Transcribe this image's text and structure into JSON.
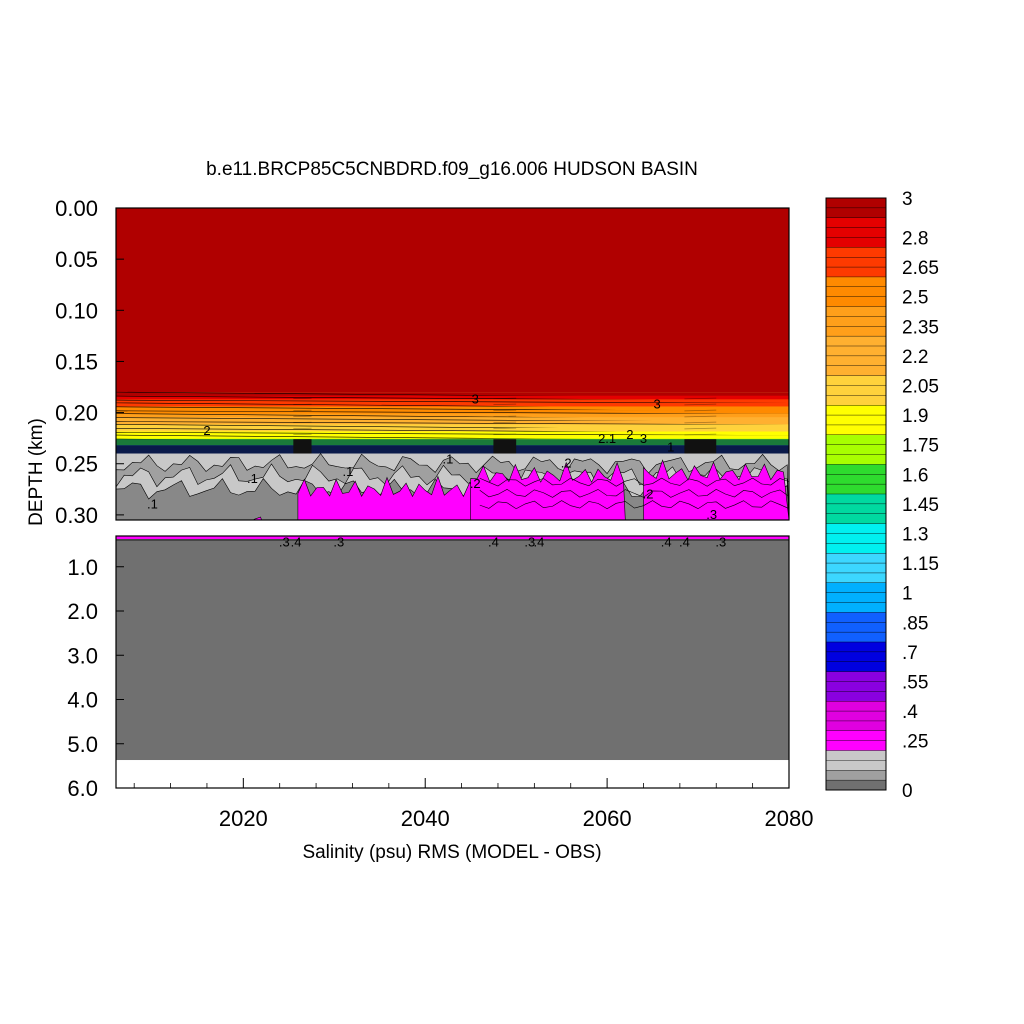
{
  "chart_data": {
    "type": "heatmap",
    "title": "b.e11.BRCP85C5CNBDRD.f09_g16.006 HUDSON BASIN",
    "xlabel": "Salinity (psu) RMS (MODEL - OBS)",
    "ylabel": "DEPTH (km)",
    "xlim": [
      2006,
      2080
    ],
    "x_ticks": [
      2020,
      2040,
      2060,
      2080
    ],
    "x_tick_labels": [
      "2020",
      "2040",
      "2060",
      "2080"
    ],
    "upper_panel": {
      "ylim": [
        0.0,
        0.305
      ],
      "y_ticks": [
        0.0,
        0.05,
        0.1,
        0.15,
        0.2,
        0.25,
        0.3
      ],
      "y_tick_labels": [
        "0.00",
        "0.05",
        "0.10",
        "0.15",
        "0.20",
        "0.25",
        "0.30"
      ]
    },
    "lower_panel": {
      "ylim": [
        0.305,
        6.0
      ],
      "y_ticks": [
        1.0,
        2.0,
        3.0,
        4.0,
        5.0,
        6.0
      ],
      "y_tick_labels": [
        "1.0",
        "2.0",
        "3.0",
        "4.0",
        "5.0",
        "6.0"
      ],
      "bottom_depth_km": 5.37
    },
    "colorbar": {
      "min": 0,
      "max": 3,
      "labels": [
        "3",
        "2.8",
        "2.65",
        "2.5",
        "2.35",
        "2.2",
        "2.05",
        "1.9",
        "1.75",
        "1.6",
        "1.45",
        "1.3",
        "1.15",
        "1",
        ".85",
        ".7",
        ".55",
        ".4",
        ".25",
        "0"
      ],
      "label_values": [
        3.0,
        2.8,
        2.65,
        2.5,
        2.35,
        2.2,
        2.05,
        1.9,
        1.75,
        1.6,
        1.45,
        1.3,
        1.15,
        1.0,
        0.85,
        0.7,
        0.55,
        0.4,
        0.25,
        0.0
      ]
    },
    "layers": [
      {
        "depth_top": 0.0,
        "depth_bottom": 0.18,
        "value": 3.0
      },
      {
        "depth_top": 0.18,
        "depth_bottom": 0.215,
        "value": 2.4
      },
      {
        "depth_top": 0.215,
        "depth_bottom": 0.23,
        "value": 1.9
      },
      {
        "depth_top": 0.23,
        "depth_bottom": 0.24,
        "value": 0.6
      },
      {
        "depth_top": 0.24,
        "depth_bottom": 0.305,
        "value": 0.15
      },
      {
        "depth_top": 0.305,
        "depth_bottom": 5.37,
        "value": 0.0
      }
    ],
    "contour_labels": [
      {
        "text": "3",
        "x": 2045.5,
        "y": 0.187
      },
      {
        "text": "3",
        "x": 2065.5,
        "y": 0.192
      },
      {
        "text": "2",
        "x": 2016.0,
        "y": 0.218
      },
      {
        "text": "2.1",
        "x": 2060.0,
        "y": 0.226
      },
      {
        "text": "2",
        "x": 2062.5,
        "y": 0.222
      },
      {
        "text": "3",
        "x": 2064.0,
        "y": 0.226
      },
      {
        "text": "1",
        "x": 2067.0,
        "y": 0.234
      },
      {
        "text": ".1",
        "x": 2021.0,
        "y": 0.265
      },
      {
        "text": ".1",
        "x": 2031.5,
        "y": 0.258
      },
      {
        "text": ".1",
        "x": 2042.5,
        "y": 0.246
      },
      {
        "text": ".1",
        "x": 2010.0,
        "y": 0.29
      },
      {
        "text": ".2",
        "x": 2045.5,
        "y": 0.27
      },
      {
        "text": ".2",
        "x": 2055.5,
        "y": 0.25
      },
      {
        "text": ".2",
        "x": 2064.5,
        "y": 0.28
      },
      {
        "text": ".3",
        "x": 2071.5,
        "y": 0.3
      },
      {
        "text": ".3",
        "x": 2024.5,
        "y": 0.45
      },
      {
        "text": ".4",
        "x": 2025.8,
        "y": 0.45
      },
      {
        "text": ".3",
        "x": 2030.5,
        "y": 0.45
      },
      {
        "text": ".4",
        "x": 2047.5,
        "y": 0.45
      },
      {
        "text": ".3",
        "x": 2051.5,
        "y": 0.45
      },
      {
        "text": ".4",
        "x": 2052.5,
        "y": 0.45
      },
      {
        "text": ".4",
        "x": 2066.5,
        "y": 0.45
      },
      {
        "text": ".4",
        "x": 2068.5,
        "y": 0.45
      },
      {
        "text": ".3",
        "x": 2072.5,
        "y": 0.45
      }
    ]
  }
}
